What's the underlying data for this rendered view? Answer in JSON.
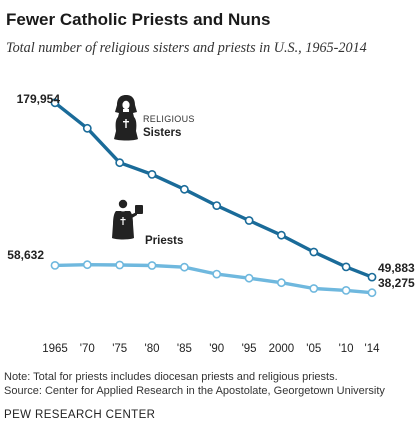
{
  "header": {
    "title": "Fewer Catholic Priests and Nuns",
    "subtitle": "Total number of religious sisters and priests in U.S., 1965-2014"
  },
  "chart_data": {
    "type": "line",
    "categories": [
      "1965",
      "'70",
      "'75",
      "'80",
      "'85",
      "'90",
      "'95",
      "2000",
      "'05",
      "'10",
      "'14"
    ],
    "x": [
      1965,
      1970,
      1975,
      1980,
      1985,
      1990,
      1995,
      2000,
      2005,
      2010,
      2014
    ],
    "ylim": [
      0,
      185000
    ],
    "series": [
      {
        "name": "Sisters",
        "name_prefix": "RELIGIOUS",
        "color": "#1a6b99",
        "values": [
          179954,
          160931,
          135225,
          126517,
          115386,
          103269,
          92107,
          81198,
          68634,
          57544,
          49883
        ],
        "start_label": "179,954",
        "end_label": "49,883"
      },
      {
        "name": "Priests",
        "color": "#6fb8de",
        "values": [
          58632,
          59192,
          58909,
          58534,
          57317,
          52124,
          49054,
          45699,
          41399,
          39993,
          38275
        ],
        "start_label": "58,632",
        "end_label": "38,275"
      }
    ],
    "icons": [
      "nun-icon",
      "priest-icon"
    ]
  },
  "notes": {
    "note": "Note: Total for priests includes diocesan priests and religious priests.",
    "source": "Source: Center for Applied Research in the Apostolate, Georgetown University"
  },
  "footer": {
    "brand": "PEW RESEARCH CENTER"
  }
}
